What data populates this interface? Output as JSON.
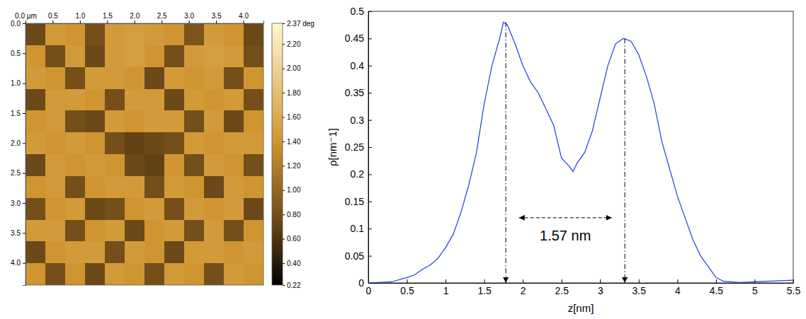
{
  "chart_data": [
    {
      "type": "heatmap",
      "xlim": [
        0,
        4.37
      ],
      "ylim": [
        0,
        4.37
      ],
      "xticks": [
        {
          "value": 0,
          "label": "0.0 µm"
        },
        0.5,
        {
          "value": 1,
          "label": "1.0"
        },
        1.5,
        {
          "value": 2,
          "label": "2.0"
        },
        2.5,
        {
          "value": 3,
          "label": "3.0"
        },
        3.5,
        {
          "value": 4,
          "label": "4.0"
        }
      ],
      "yticks": [
        {
          "value": 0,
          "label": "0.0"
        },
        0.5,
        {
          "value": 1,
          "label": "1.0"
        },
        1.5,
        {
          "value": 2,
          "label": "2.0"
        },
        2.5,
        {
          "value": 3,
          "label": "3.0"
        },
        3.5,
        {
          "value": 4,
          "label": "4.0"
        }
      ],
      "cells": [
        [
          0.75,
          1.45,
          1.4,
          0.8,
          1.45,
          1.5,
          1.45,
          1.4,
          0.85,
          1.45,
          1.4,
          0.75
        ],
        [
          1.4,
          0.8,
          1.45,
          0.75,
          1.45,
          1.5,
          1.4,
          0.8,
          1.45,
          1.5,
          1.45,
          0.8
        ],
        [
          1.45,
          1.4,
          0.8,
          1.45,
          1.45,
          1.4,
          0.75,
          1.45,
          1.4,
          1.45,
          0.8,
          1.4
        ],
        [
          0.75,
          1.45,
          1.45,
          1.4,
          0.8,
          1.45,
          1.45,
          0.75,
          1.45,
          1.4,
          1.45,
          0.8
        ],
        [
          1.4,
          1.45,
          0.8,
          0.75,
          1.45,
          1.4,
          1.45,
          1.45,
          0.8,
          1.45,
          0.75,
          1.4
        ],
        [
          1.45,
          1.4,
          1.45,
          1.4,
          0.8,
          0.7,
          0.75,
          0.8,
          1.45,
          1.4,
          1.45,
          1.45
        ],
        [
          0.75,
          1.45,
          1.4,
          1.45,
          1.4,
          0.75,
          0.7,
          1.4,
          0.8,
          1.45,
          1.4,
          0.8
        ],
        [
          1.4,
          1.45,
          0.8,
          1.4,
          1.45,
          1.45,
          0.8,
          1.45,
          1.4,
          0.75,
          1.45,
          1.4
        ],
        [
          0.8,
          1.4,
          1.45,
          0.75,
          0.8,
          1.4,
          1.45,
          0.8,
          1.45,
          1.4,
          1.45,
          0.75
        ],
        [
          1.45,
          1.45,
          0.8,
          1.4,
          1.45,
          0.75,
          1.4,
          1.45,
          0.8,
          1.45,
          0.8,
          1.4
        ],
        [
          0.75,
          1.4,
          1.45,
          1.45,
          0.8,
          1.45,
          1.4,
          0.75,
          1.45,
          1.45,
          1.4,
          1.45
        ],
        [
          1.4,
          0.8,
          1.4,
          0.75,
          1.45,
          1.4,
          0.8,
          1.45,
          1.4,
          0.8,
          1.45,
          1.4
        ]
      ],
      "colorbar": {
        "range": [
          0.22,
          2.37
        ],
        "ticks": [
          {
            "value": 2.37,
            "label": "2.37 deg"
          },
          {
            "value": 2.2,
            "label": "2.20"
          },
          {
            "value": 2,
            "label": "2.00"
          },
          {
            "value": 1.8,
            "label": "1.80"
          },
          {
            "value": 1.6,
            "label": "1.60"
          },
          {
            "value": 1.4,
            "label": "1.40"
          },
          {
            "value": 1.2,
            "label": "1.20"
          },
          {
            "value": 1,
            "label": "1.00"
          },
          {
            "value": 0.8,
            "label": "0.80"
          },
          {
            "value": 0.6,
            "label": "0.60"
          },
          {
            "value": 0.4,
            "label": "0.40"
          },
          0.22
        ]
      }
    },
    {
      "type": "line",
      "xlabel": "z[nm]",
      "ylabel": "ρ[nm⁻1]",
      "xlim": [
        0,
        5.5
      ],
      "ylim": [
        0,
        0.5
      ],
      "xticks": [
        0,
        0.5,
        1,
        1.5,
        2,
        2.5,
        3,
        3.5,
        4,
        4.5,
        5,
        5.5
      ],
      "yticks": [
        0,
        0.05,
        0.1,
        0.15,
        0.2,
        0.25,
        0.3,
        0.35,
        0.4,
        0.45,
        0.5
      ],
      "x": [
        0,
        0.3,
        0.5,
        0.6,
        0.7,
        0.8,
        0.9,
        1.0,
        1.1,
        1.2,
        1.3,
        1.4,
        1.5,
        1.6,
        1.7,
        1.75,
        1.8,
        1.9,
        2.0,
        2.1,
        2.2,
        2.3,
        2.4,
        2.5,
        2.6,
        2.65,
        2.7,
        2.8,
        2.9,
        3.0,
        3.1,
        3.2,
        3.3,
        3.4,
        3.5,
        3.6,
        3.7,
        3.8,
        3.9,
        4.0,
        4.1,
        4.2,
        4.3,
        4.4,
        4.5,
        4.6,
        4.8,
        5.0,
        5.5
      ],
      "series": [
        {
          "color": "#1f3fe0",
          "values": [
            0,
            0.002,
            0.01,
            0.015,
            0.025,
            0.033,
            0.045,
            0.065,
            0.09,
            0.13,
            0.18,
            0.24,
            0.33,
            0.4,
            0.45,
            0.48,
            0.475,
            0.44,
            0.4,
            0.37,
            0.35,
            0.32,
            0.29,
            0.23,
            0.215,
            0.205,
            0.22,
            0.24,
            0.28,
            0.34,
            0.4,
            0.44,
            0.45,
            0.445,
            0.42,
            0.38,
            0.33,
            0.26,
            0.21,
            0.16,
            0.12,
            0.08,
            0.05,
            0.03,
            0.01,
            0.003,
            0.001,
            0.002,
            0.005
          ]
        }
      ],
      "annotations": {
        "peaks": [
          {
            "x": 1.78,
            "y": 0.48
          },
          {
            "x": 3.32,
            "y": 0.45
          }
        ],
        "span": {
          "x": [
            1.95,
            3.15
          ],
          "y": 0.12,
          "label": "1.57 nm"
        }
      }
    }
  ]
}
